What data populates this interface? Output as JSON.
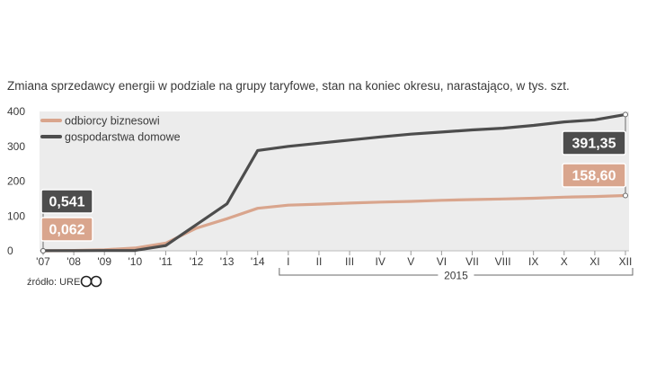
{
  "chart_data": {
    "type": "line",
    "title": "Zmiana sprzedawcy energii w podziale na grupy taryfowe, stan na koniec okresu, narastająco, w tys. szt.",
    "categories": [
      "'07",
      "'08",
      "'09",
      "'10",
      "'11",
      "'12",
      "'13",
      "'14",
      "I",
      "II",
      "III",
      "IV",
      "V",
      "VI",
      "VII",
      "VIII",
      "IX",
      "X",
      "XI",
      "XII"
    ],
    "series": [
      {
        "name": "odbiorcy biznesowi",
        "color": "#d9a58d",
        "values": [
          0.062,
          1,
          3,
          8,
          22,
          65,
          92,
          122,
          131,
          134,
          137,
          140,
          142,
          145,
          147,
          149,
          151,
          154,
          156,
          158.6
        ]
      },
      {
        "name": "gospodarstwa domowe",
        "color": "#4d4d4d",
        "values": [
          0.541,
          0.5,
          0.7,
          1,
          15,
          75,
          135,
          288,
          300,
          309,
          318,
          327,
          335,
          341,
          347,
          352,
          360,
          370,
          376,
          391.35
        ]
      }
    ],
    "ylim": [
      0,
      400
    ],
    "yticks": [
      0,
      100,
      200,
      300,
      400
    ],
    "grid": false,
    "legend_position": "top-left",
    "group_label": "2015",
    "callouts": {
      "start_household": "0,541",
      "start_business": "0,062",
      "end_household": "391,35",
      "end_business": "158,60"
    },
    "source": "źródło: URE"
  },
  "colors": {
    "plot_background": "#ececec",
    "callout_dark": "#4d4d4d",
    "callout_light": "#d9a58d"
  }
}
